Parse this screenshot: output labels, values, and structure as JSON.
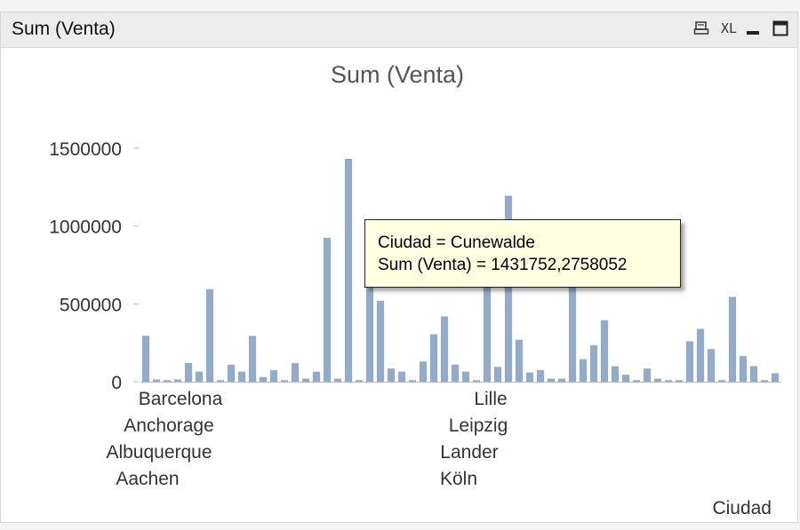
{
  "window": {
    "title": "Sum (Venta)",
    "icons": [
      "print-icon",
      "xl-export-icon",
      "minimize-icon",
      "maximize-icon"
    ],
    "xl_label": "XL"
  },
  "tooltip": {
    "line1": "Ciudad = Cunewalde",
    "line2": "Sum (Venta) = 1431752,2758052"
  },
  "colors": {
    "bar": "#92abcb",
    "axis": "#bbbbbb",
    "text": "#333333",
    "title": "#555555"
  },
  "chart_data": {
    "type": "bar",
    "title": "Sum (Venta)",
    "xlabel": "Ciudad",
    "ylabel": "",
    "ylim": [
      0,
      1500000
    ],
    "yticks": [
      "1500000",
      "1000000",
      "500000",
      "0"
    ],
    "visible_x_labels": [
      "Barcelona",
      "Anchorage",
      "Albuquerque",
      "Aachen",
      "Lille",
      "Leipzig",
      "Lander",
      "Köln"
    ],
    "values": [
      295000,
      15000,
      10000,
      15000,
      120000,
      65000,
      595000,
      10000,
      110000,
      65000,
      295000,
      30000,
      75000,
      10000,
      120000,
      20000,
      65000,
      925000,
      20000,
      1431752,
      10000,
      605000,
      520000,
      85000,
      65000,
      10000,
      130000,
      305000,
      420000,
      110000,
      65000,
      10000,
      605000,
      95000,
      1195000,
      270000,
      60000,
      75000,
      20000,
      20000,
      670000,
      145000,
      235000,
      395000,
      100000,
      45000,
      10000,
      85000,
      20000,
      10000,
      10000,
      260000,
      340000,
      210000,
      10000,
      545000,
      165000,
      100000,
      10000,
      55000
    ]
  }
}
